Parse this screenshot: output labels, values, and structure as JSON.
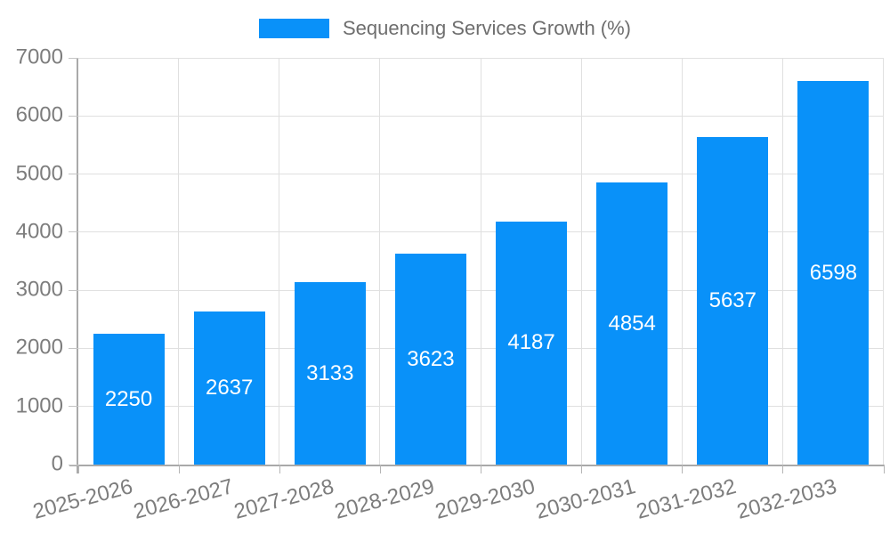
{
  "chart_data": {
    "type": "bar",
    "title": "Sequencing Services Growth (%)",
    "categories": [
      "2025-2026",
      "2026-2027",
      "2027-2028",
      "2028-2029",
      "2029-2030",
      "2030-2031",
      "2031-2032",
      "2032-2033"
    ],
    "values": [
      2250,
      2637,
      3133,
      3623,
      4187,
      4854,
      5637,
      6598
    ],
    "xlabel": "",
    "ylabel": "",
    "ylim": [
      0,
      7000
    ],
    "ytick_step": 1000,
    "ytick_labels": [
      "0",
      "1000",
      "2000",
      "3000",
      "4000",
      "5000",
      "6000",
      "7000"
    ],
    "grid": true,
    "legend_position": "top",
    "bar_labels_visible": true
  },
  "colors": {
    "bar": "#0991f9",
    "grid": "#e0e0e0",
    "axis": "#a9a9a9",
    "tick_text": "#7d7d7d",
    "legend_text": "#6e6e6e",
    "bar_label_text": "#ffffff",
    "background": "#ffffff"
  }
}
